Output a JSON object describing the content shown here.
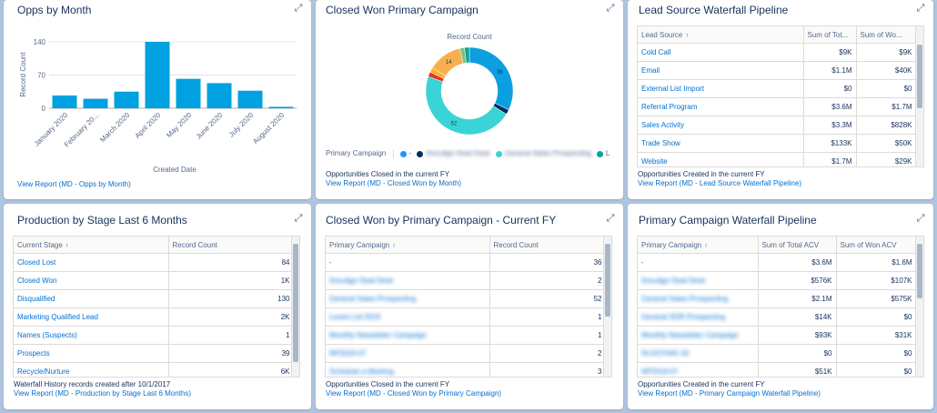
{
  "cards": {
    "opps_by_month": {
      "title": "Opps by Month",
      "view_report": "View Report (MD - Opps by Month)",
      "chart_data": {
        "type": "bar",
        "categories": [
          "January 2020",
          "February 20...",
          "March 2020",
          "April 2020",
          "May 2020",
          "June 2020",
          "July 2020",
          "August 2020"
        ],
        "values": [
          27,
          20,
          35,
          140,
          62,
          53,
          37,
          3
        ],
        "xlabel": "Created Date",
        "ylabel": "Record Count",
        "ylim": [
          0,
          140
        ],
        "yticks": [
          "0",
          "70",
          "140"
        ],
        "color": "#00a1e0"
      }
    },
    "closed_won_campaign": {
      "title": "Closed Won Primary Campaign",
      "note": "Opportunities Closed in the current FY",
      "view_report": "View Report (MD - Closed Won by Month)",
      "chart_data": {
        "type": "pie",
        "title": "Record Count",
        "legend_title": "Primary Campaign",
        "legend": [
          {
            "name": "-",
            "color": "#1b96ff"
          },
          {
            "name": "Doculign Deal Desk",
            "color": "#032d60"
          },
          {
            "name": "General Sales Prospecting",
            "color": "#3ad3d6"
          },
          {
            "name": "L",
            "color": "#06a59a"
          }
        ],
        "slices": [
          {
            "value": 36,
            "color": "#0b9fe0",
            "label": "36"
          },
          {
            "value": 2,
            "color": "#032d60",
            "label": ""
          },
          {
            "value": 52,
            "color": "#3ad3d6",
            "label": "52"
          },
          {
            "value": 2,
            "color": "#e3361b",
            "label": ""
          },
          {
            "value": 2,
            "color": "#fcaf32",
            "label": ""
          },
          {
            "value": 14,
            "color": "#f8b04e",
            "label": "14"
          },
          {
            "value": 2,
            "color": "#7cc47c",
            "label": ""
          },
          {
            "value": 2,
            "color": "#06a59a",
            "label": ""
          }
        ]
      }
    },
    "lead_source": {
      "title": "Lead Source Waterfall Pipeline",
      "note": "Opportunities Created in the current FY",
      "view_report": "View Report (MD - Lead Source Waterfall Pipeline)",
      "columns": [
        "Lead Source",
        "Sum of Tot...",
        "Sum of Wo..."
      ],
      "rows": [
        [
          "Cold Call",
          "$9K",
          "$9K"
        ],
        [
          "Email",
          "$1.1M",
          "$40K"
        ],
        [
          "External List Import",
          "$0",
          "$0"
        ],
        [
          "Referral Program",
          "$3.6M",
          "$1.7M"
        ],
        [
          "Sales Activity",
          "$3.3M",
          "$828K"
        ],
        [
          "Trade Show",
          "$133K",
          "$50K"
        ],
        [
          "Website",
          "$1.7M",
          "$29K"
        ]
      ]
    },
    "production_stage": {
      "title": "Production by Stage Last 6 Months",
      "note": "Waterfall History records created after 10/1/2017",
      "view_report": "View Report (MD - Production by Stage Last 6 Months)",
      "columns": [
        "Current Stage",
        "Record Count"
      ],
      "rows": [
        [
          "Closed Lost",
          "84"
        ],
        [
          "Closed Won",
          "1K"
        ],
        [
          "Disqualified",
          "130"
        ],
        [
          "Marketing Qualified Lead",
          "2K"
        ],
        [
          "Names (Suspects)",
          "1"
        ],
        [
          "Prospects",
          "39"
        ],
        [
          "Recycle/Nurture",
          "6K"
        ]
      ]
    },
    "closed_won_fy": {
      "title": "Closed Won by Primary Campaign - Current FY",
      "note": "Opportunities Closed in the current FY",
      "view_report": "View Report (MD - Closed Won by Primary Campaign)",
      "columns": [
        "Primary Campaign",
        "Record Count"
      ],
      "rows": [
        [
          "-",
          "36"
        ],
        [
          "Doculign Deal Desk",
          "2"
        ],
        [
          "General Sales Prospecting",
          "52"
        ],
        [
          "Lorem Ltd 2019",
          "1"
        ],
        [
          "Monthly Newsletter Campaign",
          "1"
        ],
        [
          "NP2019-07",
          "2"
        ],
        [
          "Schedule a Meeting",
          "3"
        ]
      ]
    },
    "primary_campaign": {
      "title": "Primary Campaign Waterfall Pipeline",
      "note": "Opportunities Created in the current FY",
      "view_report": "View Report (MD - Primary Campaign Waterfall Pipeline)",
      "columns": [
        "Primary Campaign",
        "Sum of Total ACV",
        "Sum of Won ACV"
      ],
      "rows": [
        [
          "-",
          "$3.6M",
          "$1.6M"
        ],
        [
          "Doculign Deal Desk",
          "$576K",
          "$107K"
        ],
        [
          "General Sales Prospecting",
          "$2.1M",
          "$575K"
        ],
        [
          "General SDR Prospecting",
          "$14K",
          "$0"
        ],
        [
          "Monthly Newsletter Campaign",
          "$93K",
          "$31K"
        ],
        [
          "IN-DCF045-18",
          "$0",
          "$0"
        ],
        [
          "NP2019-07",
          "$51K",
          "$0"
        ]
      ]
    }
  },
  "icons": {
    "expand": "expand-icon",
    "sort": "sort-arrow-icon"
  }
}
